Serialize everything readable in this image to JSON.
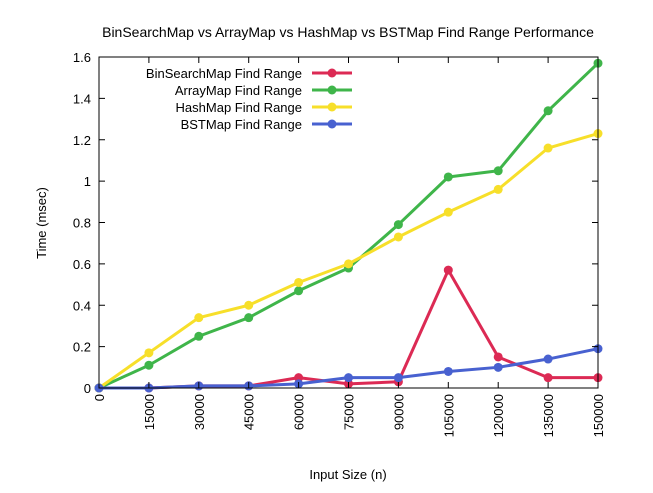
{
  "chart_data": {
    "type": "line",
    "title": "BinSearchMap vs ArrayMap vs HashMap vs BSTMap Find Range Performance",
    "xlabel": "Input Size (n)",
    "ylabel": "Time (msec)",
    "x": [
      0,
      15000,
      30000,
      45000,
      60000,
      75000,
      90000,
      105000,
      120000,
      135000,
      150000
    ],
    "x_tick_labels": [
      "0",
      "15000",
      "30000",
      "45000",
      "60000",
      "75000",
      "90000",
      "105000",
      "120000",
      "135000",
      "150000"
    ],
    "y_ticks": [
      0,
      0.2,
      0.4,
      0.6,
      0.8,
      1.0,
      1.2,
      1.4,
      1.6
    ],
    "y_tick_labels": [
      "0",
      "0.2",
      "0.4",
      "0.6",
      "0.8",
      "1",
      "1.2",
      "1.4",
      "1.6"
    ],
    "xlim": [
      0,
      150000
    ],
    "ylim": [
      0,
      1.6
    ],
    "grid": false,
    "legend_position": "top-left",
    "series": [
      {
        "name": "BinSearchMap Find Range",
        "color": "#dc2a54",
        "values": [
          0,
          0,
          0.01,
          0.01,
          0.05,
          0.02,
          0.03,
          0.57,
          0.15,
          0.05,
          0.05
        ]
      },
      {
        "name": "ArrayMap Find Range",
        "color": "#3fb54a",
        "values": [
          0,
          0.11,
          0.25,
          0.34,
          0.47,
          0.58,
          0.79,
          1.02,
          1.05,
          1.34,
          1.57
        ]
      },
      {
        "name": "HashMap Find Range",
        "color": "#f7df2a",
        "values": [
          0,
          0.17,
          0.34,
          0.4,
          0.51,
          0.6,
          0.73,
          0.85,
          0.96,
          1.16,
          1.23
        ]
      },
      {
        "name": "BSTMap Find Range",
        "color": "#4861d0",
        "values": [
          0,
          0,
          0.01,
          0.01,
          0.02,
          0.05,
          0.05,
          0.08,
          0.1,
          0.14,
          0.19
        ]
      }
    ]
  }
}
